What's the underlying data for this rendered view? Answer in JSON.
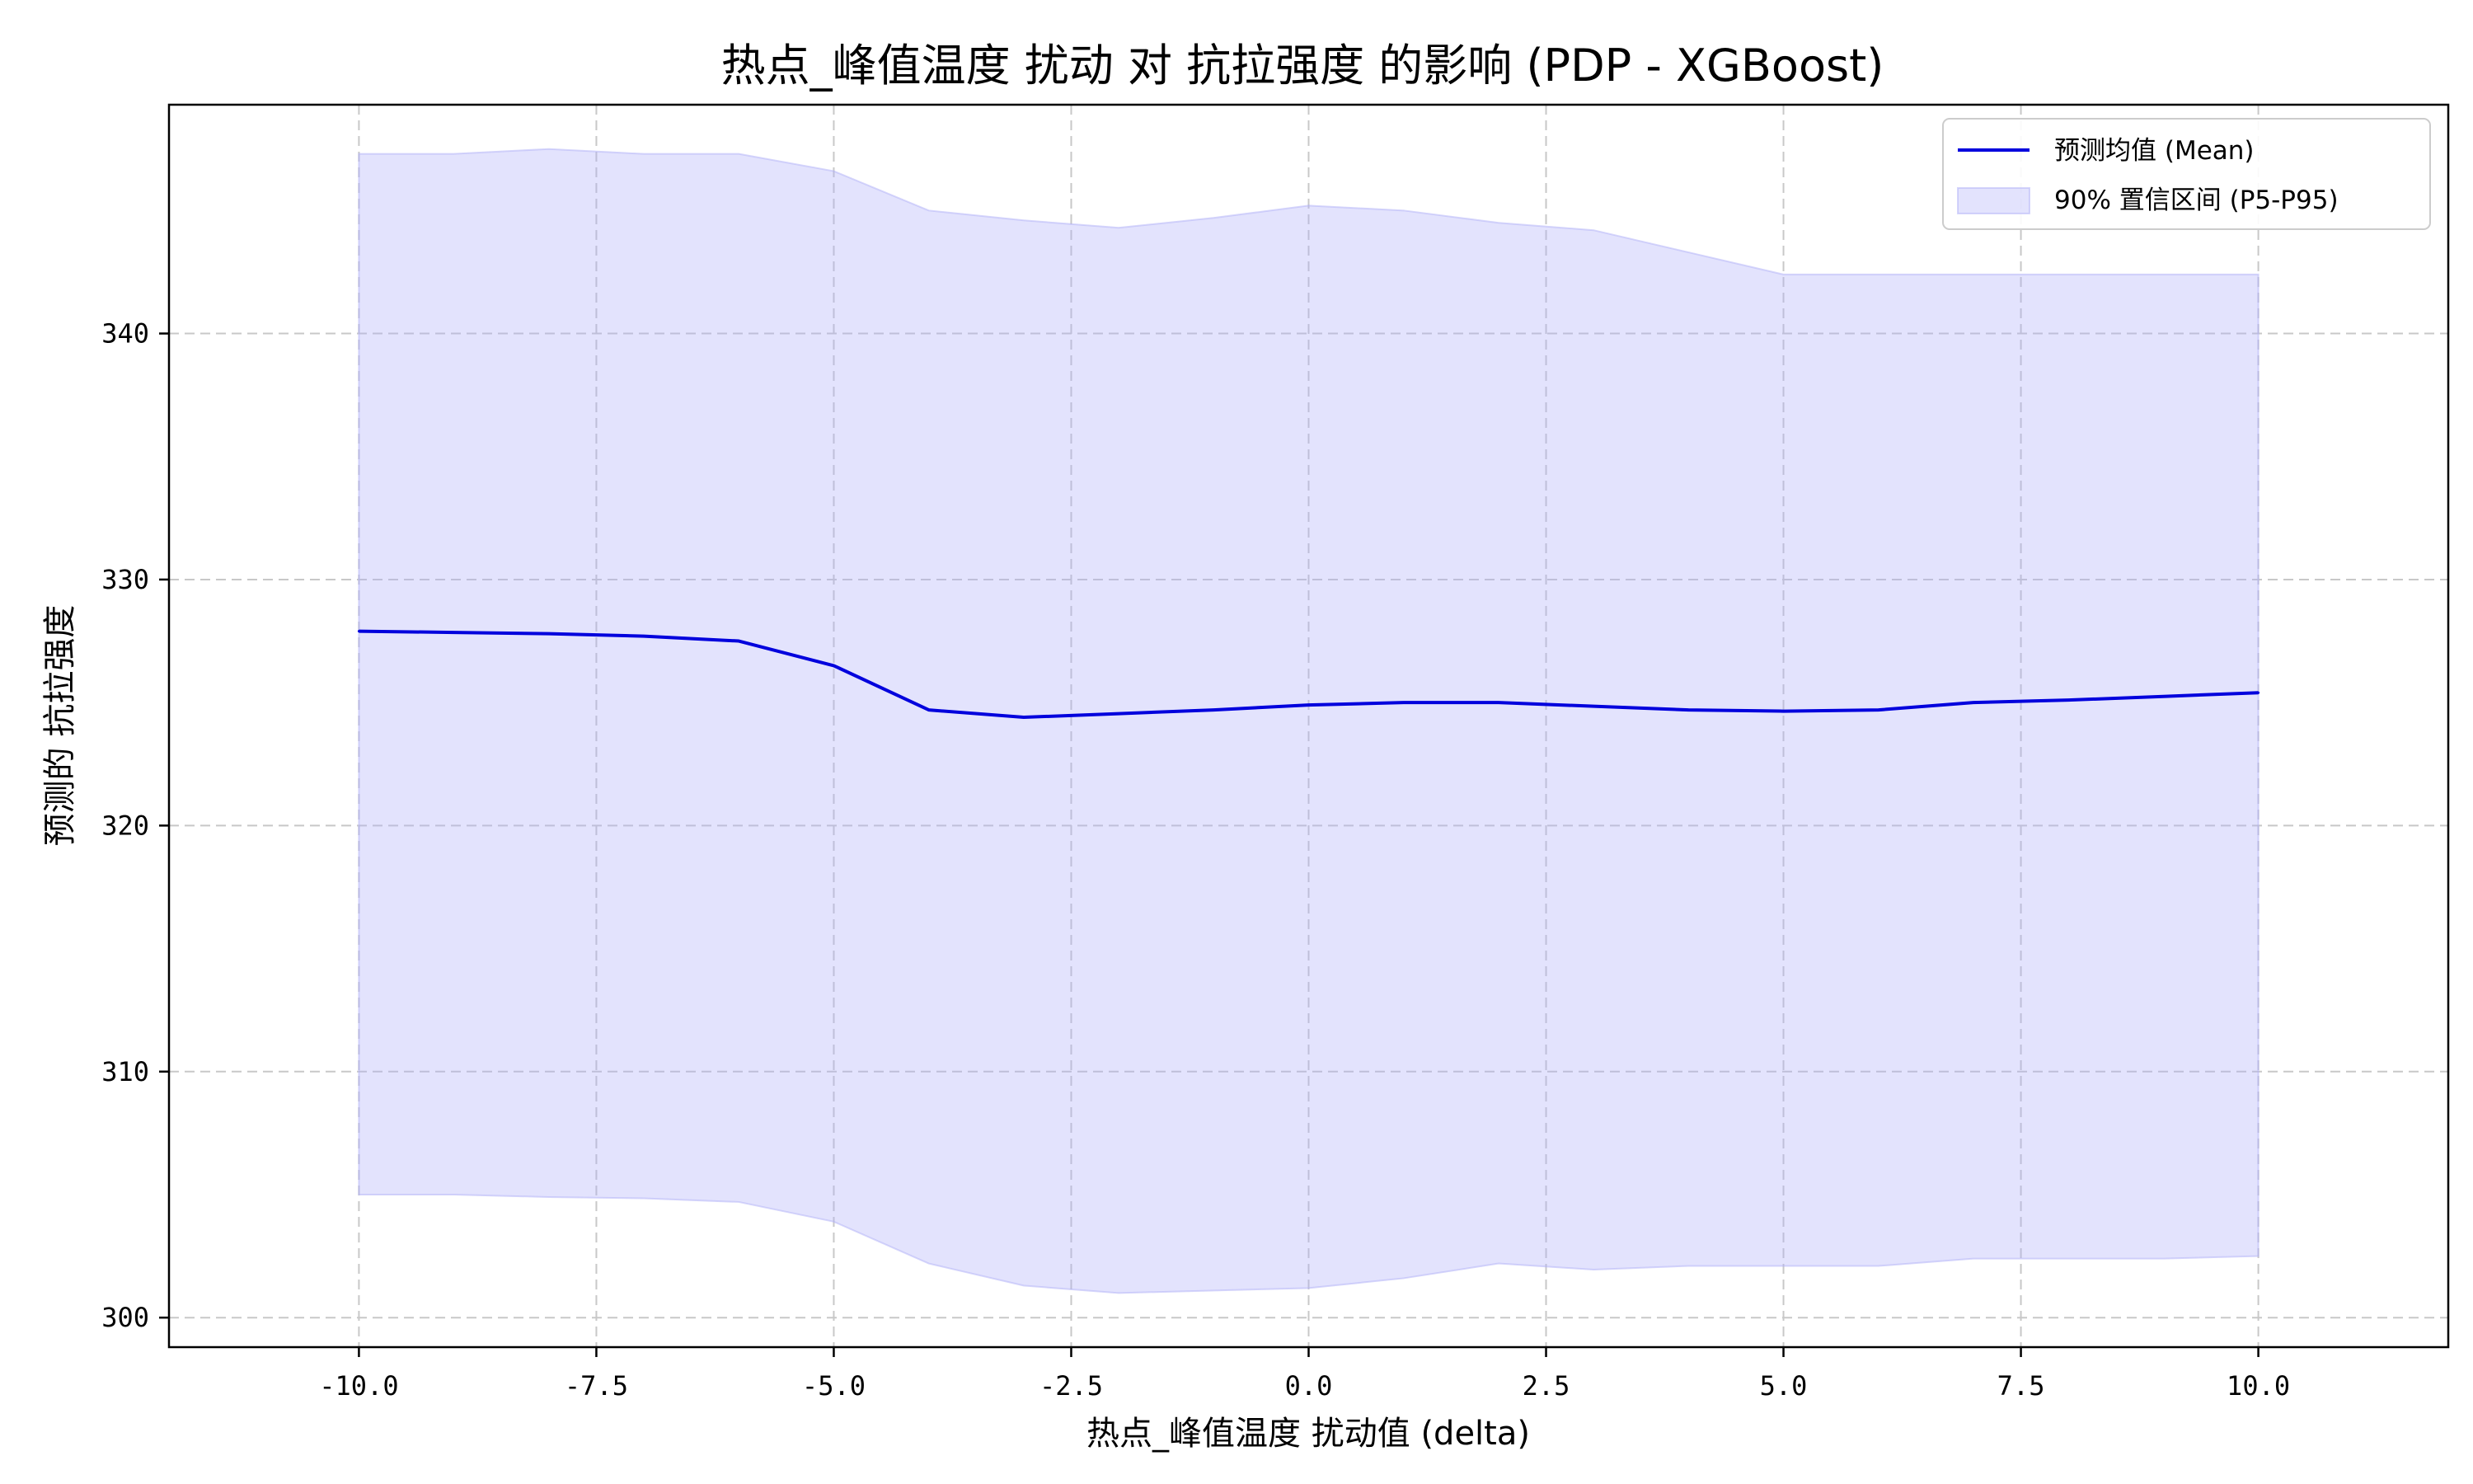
{
  "chart_data": {
    "type": "line",
    "title": "热点_峰值温度 扰动 对 抗拉强度 的影响 (PDP - XGBoost)",
    "xlabel": "热点_峰值温度 扰动值 (delta)",
    "ylabel": "预测的 抗拉强度",
    "xlim": [
      -12.0,
      12.0
    ],
    "ylim": [
      298.8,
      349.3
    ],
    "grid": true,
    "legend_position": "top-right",
    "x_ticks": [
      {
        "value": -10.0,
        "label": "-10.0"
      },
      {
        "value": -7.5,
        "label": "-7.5"
      },
      {
        "value": -5.0,
        "label": "-5.0"
      },
      {
        "value": -2.5,
        "label": "-2.5"
      },
      {
        "value": 0.0,
        "label": "0.0"
      },
      {
        "value": 2.5,
        "label": "2.5"
      },
      {
        "value": 5.0,
        "label": "5.0"
      },
      {
        "value": 7.5,
        "label": "7.5"
      },
      {
        "value": 10.0,
        "label": "10.0"
      }
    ],
    "y_ticks": [
      {
        "value": 300,
        "label": "300"
      },
      {
        "value": 310,
        "label": "310"
      },
      {
        "value": 320,
        "label": "320"
      },
      {
        "value": 330,
        "label": "330"
      },
      {
        "value": 340,
        "label": "340"
      }
    ],
    "x": [
      -10,
      -9,
      -8,
      -7,
      -6,
      -5,
      -4,
      -3,
      -2,
      -1,
      0,
      1,
      2,
      3,
      4,
      5,
      6,
      7,
      8,
      9,
      10
    ],
    "series": [
      {
        "name": "预测均值 (Mean)",
        "kind": "line",
        "color": "#0000dd",
        "values": [
          327.9,
          327.85,
          327.8,
          327.7,
          327.5,
          326.5,
          324.7,
          324.4,
          324.55,
          324.7,
          324.9,
          325.0,
          325.0,
          324.85,
          324.7,
          324.65,
          324.7,
          325.0,
          325.1,
          325.25,
          325.4
        ]
      },
      {
        "name": "90% 置信区间 (P5-P95)",
        "kind": "band",
        "color": "#b0b0f8",
        "upper": [
          347.3,
          347.3,
          347.5,
          347.3,
          347.3,
          346.6,
          345.0,
          344.6,
          344.3,
          344.7,
          345.2,
          345.0,
          344.5,
          344.2,
          343.3,
          342.4,
          342.4,
          342.4,
          342.4,
          342.4,
          342.4
        ],
        "lower": [
          305.0,
          305.0,
          304.9,
          304.85,
          304.7,
          303.9,
          302.2,
          301.3,
          301.0,
          301.1,
          301.2,
          301.6,
          302.2,
          301.95,
          302.1,
          302.1,
          302.1,
          302.4,
          302.4,
          302.4,
          302.5
        ]
      }
    ]
  }
}
